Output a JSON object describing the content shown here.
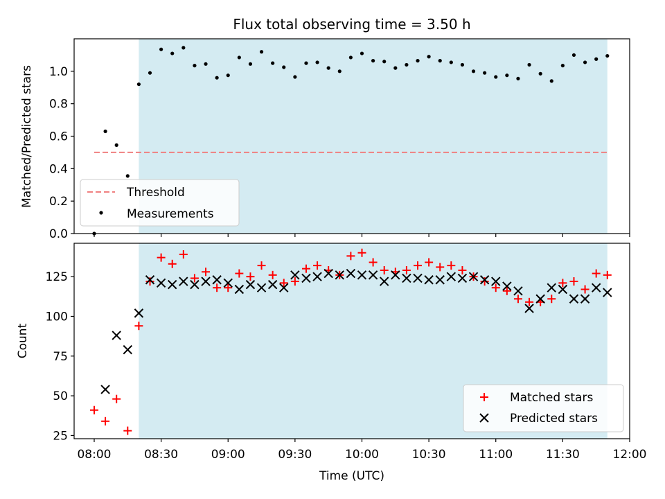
{
  "chart_data": [
    {
      "type": "scatter",
      "title": "Flux total observing time = 3.50 h",
      "xlabel": "",
      "ylabel": "Matched/Predicted stars",
      "ylim": [
        0,
        1.2
      ],
      "yticks": [
        "0.0",
        "0.2",
        "0.4",
        "0.6",
        "0.8",
        "1.0"
      ],
      "ytick_values": [
        0,
        0.2,
        0.4,
        0.6,
        0.8,
        1.0
      ],
      "grid": false,
      "legend_position": "lower-left",
      "shaded_span": [
        "08:20",
        "11:50"
      ],
      "shade_color": "#add8e6",
      "threshold": {
        "name": "Threshold",
        "value": 0.5,
        "x_range": [
          "08:00",
          "11:50"
        ],
        "color": "#f08080"
      },
      "measurements": {
        "name": "Measurements",
        "color": "#000000",
        "x": [
          "08:00",
          "08:05",
          "08:10",
          "08:15",
          "08:20",
          "08:25",
          "08:30",
          "08:35",
          "08:40",
          "08:45",
          "08:50",
          "08:55",
          "09:00",
          "09:05",
          "09:10",
          "09:15",
          "09:20",
          "09:25",
          "09:30",
          "09:35",
          "09:40",
          "09:45",
          "09:50",
          "09:55",
          "10:00",
          "10:05",
          "10:10",
          "10:15",
          "10:20",
          "10:25",
          "10:30",
          "10:35",
          "10:40",
          "10:45",
          "10:50",
          "10:55",
          "11:00",
          "11:05",
          "11:10",
          "11:15",
          "11:20",
          "11:25",
          "11:30",
          "11:35",
          "11:40",
          "11:45",
          "11:50"
        ],
        "y": [
          0.0,
          0.63,
          0.545,
          0.355,
          0.92,
          0.99,
          1.135,
          1.11,
          1.145,
          1.035,
          1.045,
          0.96,
          0.975,
          1.085,
          1.045,
          1.12,
          1.05,
          1.025,
          0.965,
          1.05,
          1.055,
          1.02,
          1.0,
          1.085,
          1.11,
          1.065,
          1.06,
          1.02,
          1.04,
          1.065,
          1.09,
          1.065,
          1.055,
          1.04,
          1.0,
          0.99,
          0.965,
          0.975,
          0.955,
          1.04,
          0.985,
          0.94,
          1.035,
          1.1,
          1.055,
          1.075,
          1.095
        ]
      }
    },
    {
      "type": "scatter",
      "title": "",
      "xlabel": "Time (UTC)",
      "ylabel": "Count",
      "ylim": [
        23,
        146
      ],
      "yticks": [
        "25",
        "50",
        "75",
        "100",
        "125"
      ],
      "ytick_values": [
        25,
        50,
        75,
        100,
        125
      ],
      "xlim": [
        "07:51",
        "12:00"
      ],
      "xticks": [
        "08:00",
        "08:30",
        "09:00",
        "09:30",
        "10:00",
        "10:30",
        "11:00",
        "11:30",
        "12:00"
      ],
      "grid": false,
      "legend_position": "lower-right",
      "shaded_span": [
        "08:20",
        "11:50"
      ],
      "shade_color": "#add8e6",
      "series": [
        {
          "name": "Matched stars",
          "marker": "plus",
          "color": "#ff0000",
          "x": [
            "08:00",
            "08:05",
            "08:10",
            "08:15",
            "08:20",
            "08:25",
            "08:30",
            "08:35",
            "08:40",
            "08:45",
            "08:50",
            "08:55",
            "09:00",
            "09:05",
            "09:10",
            "09:15",
            "09:20",
            "09:25",
            "09:30",
            "09:35",
            "09:40",
            "09:45",
            "09:50",
            "09:55",
            "10:00",
            "10:05",
            "10:10",
            "10:15",
            "10:20",
            "10:25",
            "10:30",
            "10:35",
            "10:40",
            "10:45",
            "10:50",
            "10:55",
            "11:00",
            "11:05",
            "11:10",
            "11:15",
            "11:20",
            "11:25",
            "11:30",
            "11:35",
            "11:40",
            "11:45",
            "11:50"
          ],
          "y": [
            41,
            34,
            48,
            28,
            94,
            122,
            137,
            133,
            139,
            124,
            128,
            118,
            118,
            127,
            125,
            132,
            126,
            121,
            122,
            130,
            132,
            129,
            126,
            138,
            140,
            134,
            129,
            128,
            129,
            132,
            134,
            131,
            132,
            129,
            125,
            122,
            118,
            116,
            111,
            109,
            109,
            111,
            121,
            122,
            117,
            127,
            126
          ]
        },
        {
          "name": "Predicted stars",
          "marker": "x",
          "color": "#000000",
          "x": [
            "08:05",
            "08:10",
            "08:15",
            "08:20",
            "08:25",
            "08:30",
            "08:35",
            "08:40",
            "08:45",
            "08:50",
            "08:55",
            "09:00",
            "09:05",
            "09:10",
            "09:15",
            "09:20",
            "09:25",
            "09:30",
            "09:35",
            "09:40",
            "09:45",
            "09:50",
            "09:55",
            "10:00",
            "10:05",
            "10:10",
            "10:15",
            "10:20",
            "10:25",
            "10:30",
            "10:35",
            "10:40",
            "10:45",
            "10:50",
            "10:55",
            "11:00",
            "11:05",
            "11:10",
            "11:15",
            "11:20",
            "11:25",
            "11:30",
            "11:35",
            "11:40",
            "11:45",
            "11:50"
          ],
          "y": [
            54,
            88,
            79,
            102,
            123,
            121,
            120,
            122,
            120,
            122,
            123,
            121,
            117,
            120,
            118,
            120,
            118,
            126,
            124,
            125,
            127,
            126,
            127,
            126,
            126,
            122,
            126,
            124,
            124,
            123,
            123,
            125,
            124,
            125,
            123,
            122,
            119,
            116,
            105,
            111,
            118,
            117,
            111,
            111,
            118,
            115
          ]
        }
      ]
    }
  ]
}
